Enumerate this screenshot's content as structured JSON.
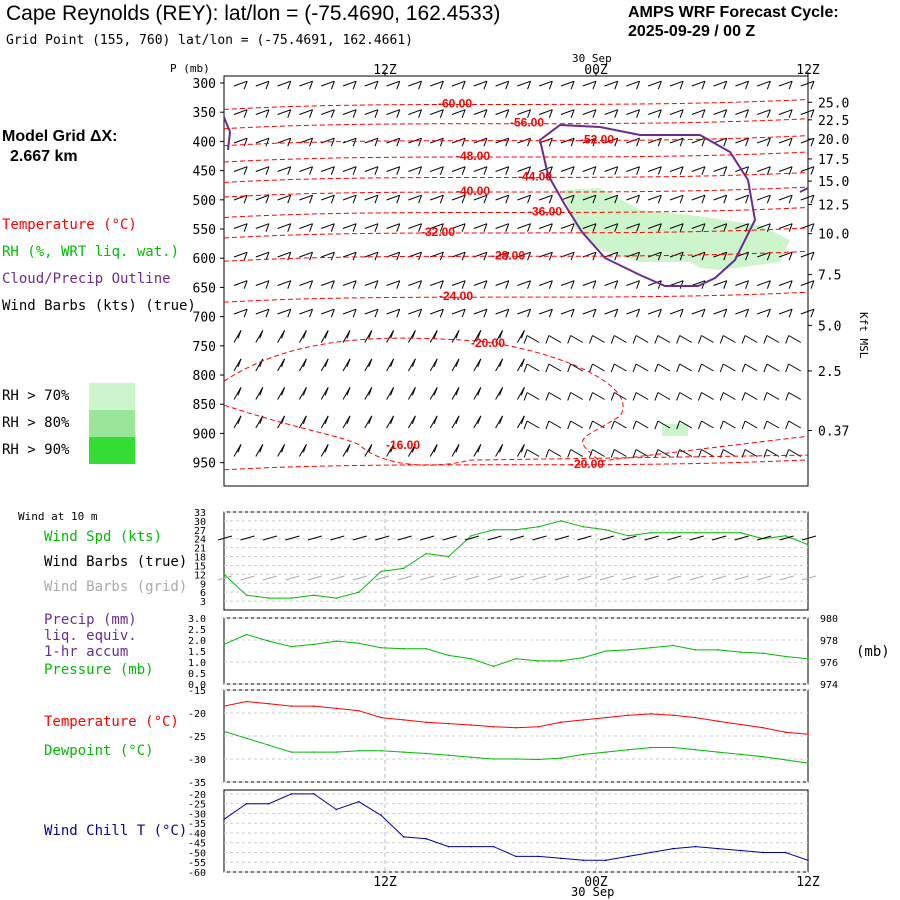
{
  "header": {
    "title": "Cape Reynolds (REY):  lat/lon = (-75.4690, 162.4533)",
    "subtitle": "Grid Point (155, 760) lat/lon = (-75.4691, 162.4661)",
    "cycle_title": "AMPS WRF Forecast Cycle:",
    "cycle_value": "2025-09-29 / 00  Z"
  },
  "model_grid": {
    "label": "Model Grid ΔX:",
    "value": "2.667 km"
  },
  "colors": {
    "temperature": "#ff0000",
    "rh": "#00bb00",
    "cloud": "#6a2c91",
    "wind": "#000000",
    "wind_grid": "#aaaaaa",
    "precip": "#6a2c91",
    "pressure": "#00bb00",
    "dewpoint": "#00bb00",
    "wind_chill": "#0000aa",
    "rh70": "#ccf5cc",
    "rh80": "#99e699",
    "rh90": "#33dd33"
  },
  "legend": {
    "temperature": "Temperature (°C)",
    "rh": "RH (%, WRT liq. wat.)",
    "cloud": "Cloud/Precip Outline",
    "wind": "Wind Barbs (kts) (true)",
    "rh70": "RH > 70%",
    "rh80": "RH > 80%",
    "rh90": "RH > 90%"
  },
  "chart_data": [
    {
      "type": "heatmap",
      "name": "upper-air cross section",
      "ylabel": "P (mb)",
      "yticks": [
        "300",
        "350",
        "400",
        "450",
        "500",
        "550",
        "600",
        "650",
        "700",
        "750",
        "800",
        "850",
        "900",
        "950"
      ],
      "right_axis_label": "Kft MSL",
      "right_ticks": [
        "25.0",
        "22.5",
        "20.0",
        "17.5",
        "15.0",
        "12.5",
        "10.0",
        "7.5",
        "5.0",
        "2.5",
        "0.37"
      ],
      "xticks": [
        "12Z",
        "00Z",
        "12Z"
      ],
      "date_label": "30 Sep",
      "temperature_contours": [
        {
          "label": "-60.00",
          "pressure": 335
        },
        {
          "label": "-56.00",
          "pressure": 368
        },
        {
          "label": "-52.00",
          "pressure": 397
        },
        {
          "label": "-48.00",
          "pressure": 425
        },
        {
          "label": "-44.00",
          "pressure": 460
        },
        {
          "label": "-40.00",
          "pressure": 485
        },
        {
          "label": "-36.00",
          "pressure": 520
        },
        {
          "label": "-32.00",
          "pressure": 555
        },
        {
          "label": "-28.00",
          "pressure": 595
        },
        {
          "label": "-24.00",
          "pressure": 665
        },
        {
          "label": "-20.00",
          "pressure": 742
        },
        {
          "label": "-16.00",
          "pressure": 920
        },
        {
          "label": "-20.00",
          "pressure": 952
        }
      ]
    },
    {
      "type": "line",
      "name": "Wind at 10 m",
      "title": "Wind at 10 m",
      "series": [
        {
          "name": "Wind Spd (kts)",
          "values": [
            12,
            5,
            4,
            4,
            5,
            4,
            6,
            13,
            14,
            19,
            18,
            25,
            27,
            27,
            28,
            30,
            28,
            27,
            25,
            26,
            26,
            26,
            26,
            26,
            24,
            25,
            22
          ]
        }
      ],
      "extra_legend": [
        "Wind Barbs (true)",
        "Wind Barbs (grid)"
      ],
      "yticks": [
        "33",
        "30",
        "27",
        "24",
        "21",
        "18",
        "15",
        "12",
        "9",
        "6",
        "3"
      ],
      "ylim": [
        0,
        33
      ]
    },
    {
      "type": "line",
      "name": "Precip / Pressure",
      "series": [
        {
          "name": "Pressure (mb)",
          "values": [
            977.6,
            978.5,
            977.9,
            977.4,
            977.6,
            977.9,
            977.7,
            977.3,
            977.2,
            977.2,
            976.6,
            976.3,
            975.6,
            976.3,
            976.1,
            976.1,
            976.4,
            977.0,
            977.1,
            977.3,
            977.5,
            977.1,
            977.1,
            976.9,
            976.8,
            976.5,
            976.3
          ]
        }
      ],
      "precip_labels": [
        "Precip (mm)",
        "liq. equiv.",
        "1-hr accum"
      ],
      "pressure_label": "Pressure (mb)",
      "left_ticks": [
        "3.0",
        "2.5",
        "2.0",
        "1.5",
        "1.0",
        "0.5",
        "0.0"
      ],
      "right_ticks": [
        "980",
        "978",
        "976",
        "974"
      ],
      "right_unit": "(mb)",
      "ylim": [
        974,
        980
      ]
    },
    {
      "type": "line",
      "name": "Temperature / Dewpoint",
      "series": [
        {
          "name": "Temperature (°C)",
          "values": [
            -18.5,
            -17.5,
            -18.0,
            -18.5,
            -18.5,
            -19.0,
            -19.5,
            -21.0,
            -21.5,
            -22.0,
            -22.3,
            -22.6,
            -23.0,
            -23.2,
            -23.0,
            -22.0,
            -21.5,
            -21.0,
            -20.5,
            -20.2,
            -20.5,
            -21.0,
            -21.8,
            -22.5,
            -23.2,
            -24.2,
            -24.6
          ]
        },
        {
          "name": "Dewpoint (°C)",
          "values": [
            -24.0,
            -25.5,
            -27.0,
            -28.5,
            -28.5,
            -28.5,
            -28.2,
            -28.2,
            -28.5,
            -28.8,
            -29.2,
            -29.6,
            -30.0,
            -30.0,
            -30.1,
            -29.8,
            -29.0,
            -28.5,
            -28.0,
            -27.5,
            -27.5,
            -28.0,
            -28.5,
            -29.0,
            -29.5,
            -30.2,
            -30.9
          ]
        }
      ],
      "yticks": [
        "-15",
        "-20",
        "-25",
        "-30",
        "-35"
      ],
      "ylim": [
        -35,
        -15
      ]
    },
    {
      "type": "line",
      "name": "Wind Chill",
      "series": [
        {
          "name": "Wind Chill T (°C)",
          "values": [
            -33,
            -25,
            -25,
            -20,
            -20,
            -28,
            -24,
            -31,
            -42,
            -43,
            -47,
            -47,
            -47,
            -52,
            -52,
            -53,
            -54,
            -54,
            -52,
            -50,
            -48,
            -47,
            -48,
            -49,
            -50,
            -50,
            -54
          ]
        }
      ],
      "yticks": [
        "-20",
        "-25",
        "-30",
        "-35",
        "-40",
        "-45",
        "-50",
        "-55",
        "-60"
      ],
      "ylim": [
        -60,
        -18
      ]
    }
  ],
  "bottom_axis": {
    "ticks": [
      "12Z",
      "00Z",
      "12Z"
    ],
    "date": "30 Sep"
  }
}
